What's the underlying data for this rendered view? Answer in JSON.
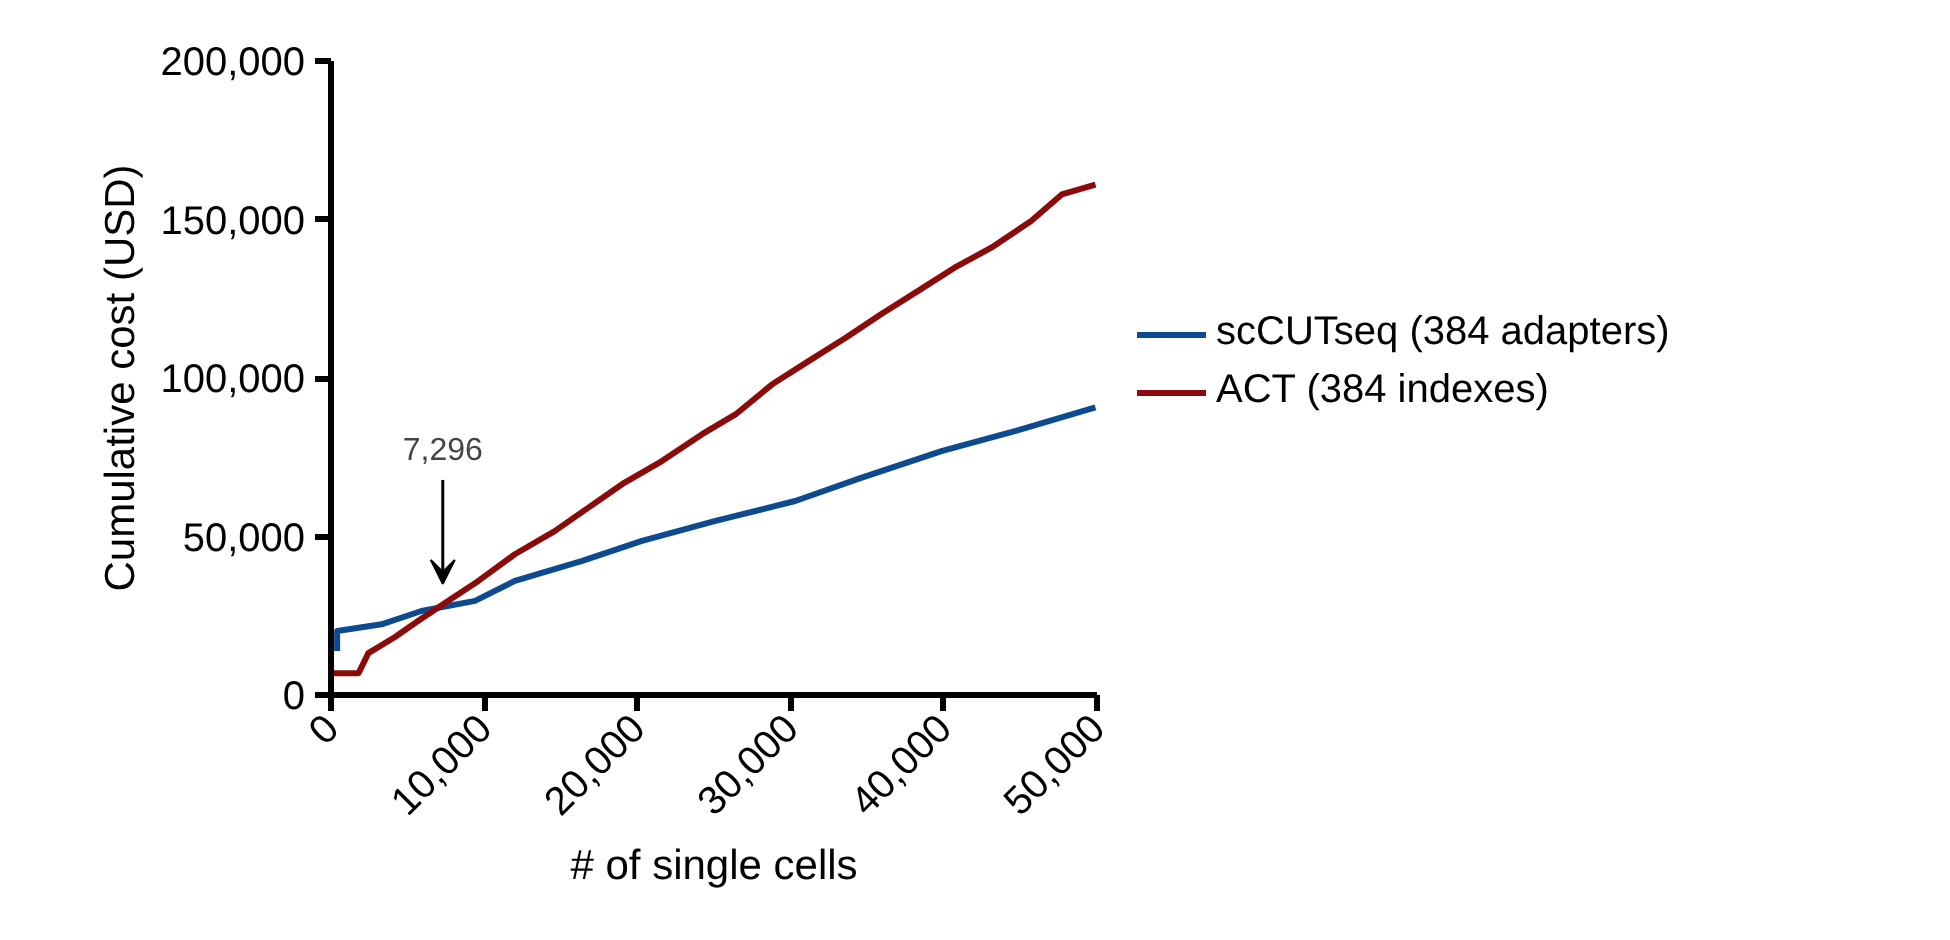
{
  "chart_data": {
    "type": "line",
    "xlabel": "# of single cells",
    "ylabel": "Cumulative cost (USD)",
    "xlim": [
      0,
      50000
    ],
    "xticks": [
      {
        "value": 0,
        "label": "0"
      },
      {
        "value": 10000,
        "label": "10,000"
      },
      {
        "value": 20000,
        "label": "20,000"
      },
      {
        "value": 30000,
        "label": "30,000"
      },
      {
        "value": 40000,
        "label": "40,000"
      },
      {
        "value": 50000,
        "label": "50,000"
      }
    ],
    "ylim": [
      0,
      200000
    ],
    "yticks": [
      {
        "value": 0,
        "label": "0"
      },
      {
        "value": 50000,
        "label": "50,000"
      },
      {
        "value": 100000,
        "label": "100,000"
      },
      {
        "value": 150000,
        "label": "150,000"
      },
      {
        "value": 200000,
        "label": "200,000"
      }
    ],
    "grid": false,
    "legend": "right",
    "marker": "none",
    "line_style": "solid",
    "series": [
      {
        "name": "scCUTseq (384 adapters)",
        "color": "#0d4a8f",
        "x": [
          400,
          400,
          3300,
          5900,
          9400,
          12000,
          16400,
          20300,
          25100,
          30300,
          34600,
          39900,
          44700,
          49900
        ],
        "values": [
          13900,
          20200,
          22300,
          26500,
          29700,
          36000,
          42300,
          48600,
          54900,
          61200,
          68500,
          77000,
          83300,
          90700
        ]
      },
      {
        "name": "ACT (384 indexes)",
        "color": "#8b0a0a",
        "x": [
          0,
          1800,
          2440,
          4180,
          5700,
          7660,
          9620,
          12000,
          14600,
          16800,
          19000,
          21600,
          24200,
          26400,
          28800,
          31200,
          33600,
          35900,
          38300,
          40700,
          43100,
          45700,
          47700,
          49900
        ],
        "values": [
          6900,
          6900,
          13200,
          18300,
          23400,
          29700,
          36000,
          44400,
          51700,
          59100,
          66500,
          73800,
          82200,
          88500,
          98000,
          105400,
          112700,
          120100,
          127400,
          134800,
          141100,
          149500,
          157900,
          161000
        ]
      }
    ],
    "annotations": [
      {
        "text": "7,296",
        "x": 7296,
        "y": 30000
      }
    ]
  }
}
